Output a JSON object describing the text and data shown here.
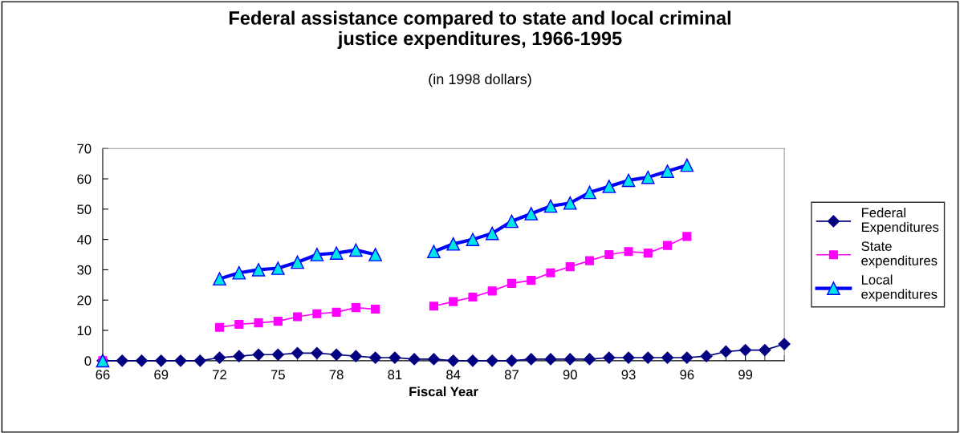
{
  "chart_data": {
    "type": "line",
    "title": "Federal assistance compared to state and local criminal\njustice expenditures, 1966-1995",
    "subtitle": "(in 1998 dollars)",
    "xlabel": "Fiscal Year",
    "x": [
      66,
      67,
      68,
      69,
      70,
      71,
      72,
      73,
      74,
      75,
      76,
      77,
      78,
      79,
      80,
      81,
      82,
      83,
      84,
      85,
      86,
      87,
      88,
      89,
      90,
      91,
      92,
      93,
      94,
      95,
      96,
      97,
      98,
      99,
      100,
      101
    ],
    "series": [
      {
        "name": "Federal\nExpenditures",
        "color": "#000080",
        "marker": "diamond",
        "values": [
          0,
          0,
          0,
          0,
          0,
          0,
          1,
          1.5,
          2,
          2,
          2.5,
          2.5,
          2,
          1.5,
          1,
          1,
          0.5,
          0.5,
          0,
          0,
          0,
          0,
          0.5,
          0.5,
          0.5,
          0.5,
          1,
          1,
          1,
          1,
          1,
          1.5,
          3,
          3.5,
          3.5,
          5.5
        ]
      },
      {
        "name": "State\nexpenditures",
        "color": "#ff00ff",
        "marker": "square",
        "values": [
          0,
          null,
          null,
          null,
          null,
          null,
          11,
          12,
          12.5,
          13,
          14.5,
          15.5,
          16,
          17.5,
          17,
          null,
          null,
          18,
          19.5,
          21,
          23,
          25.5,
          26.5,
          29,
          31,
          33,
          35,
          36,
          35.5,
          38,
          41,
          null,
          null,
          null,
          null,
          null
        ]
      },
      {
        "name": "Local\nexpenditures",
        "color": "#0000ff",
        "marker": "triangle",
        "values": [
          0,
          null,
          null,
          null,
          null,
          null,
          27,
          29,
          30,
          30.5,
          32.5,
          35,
          35.5,
          36.5,
          35,
          null,
          null,
          36,
          38.5,
          40,
          42,
          46,
          48.5,
          51,
          52,
          55.5,
          57.5,
          59.5,
          60.5,
          62.5,
          64.5,
          null,
          null,
          null,
          null,
          null
        ]
      }
    ],
    "xlim": [
      66,
      101
    ],
    "xticks": [
      66,
      69,
      72,
      75,
      78,
      81,
      84,
      87,
      90,
      93,
      96,
      99
    ],
    "ylim": [
      0,
      70
    ],
    "yticks": [
      0,
      10,
      20,
      30,
      40,
      50,
      60,
      70
    ],
    "grid": false,
    "legend": "right"
  }
}
